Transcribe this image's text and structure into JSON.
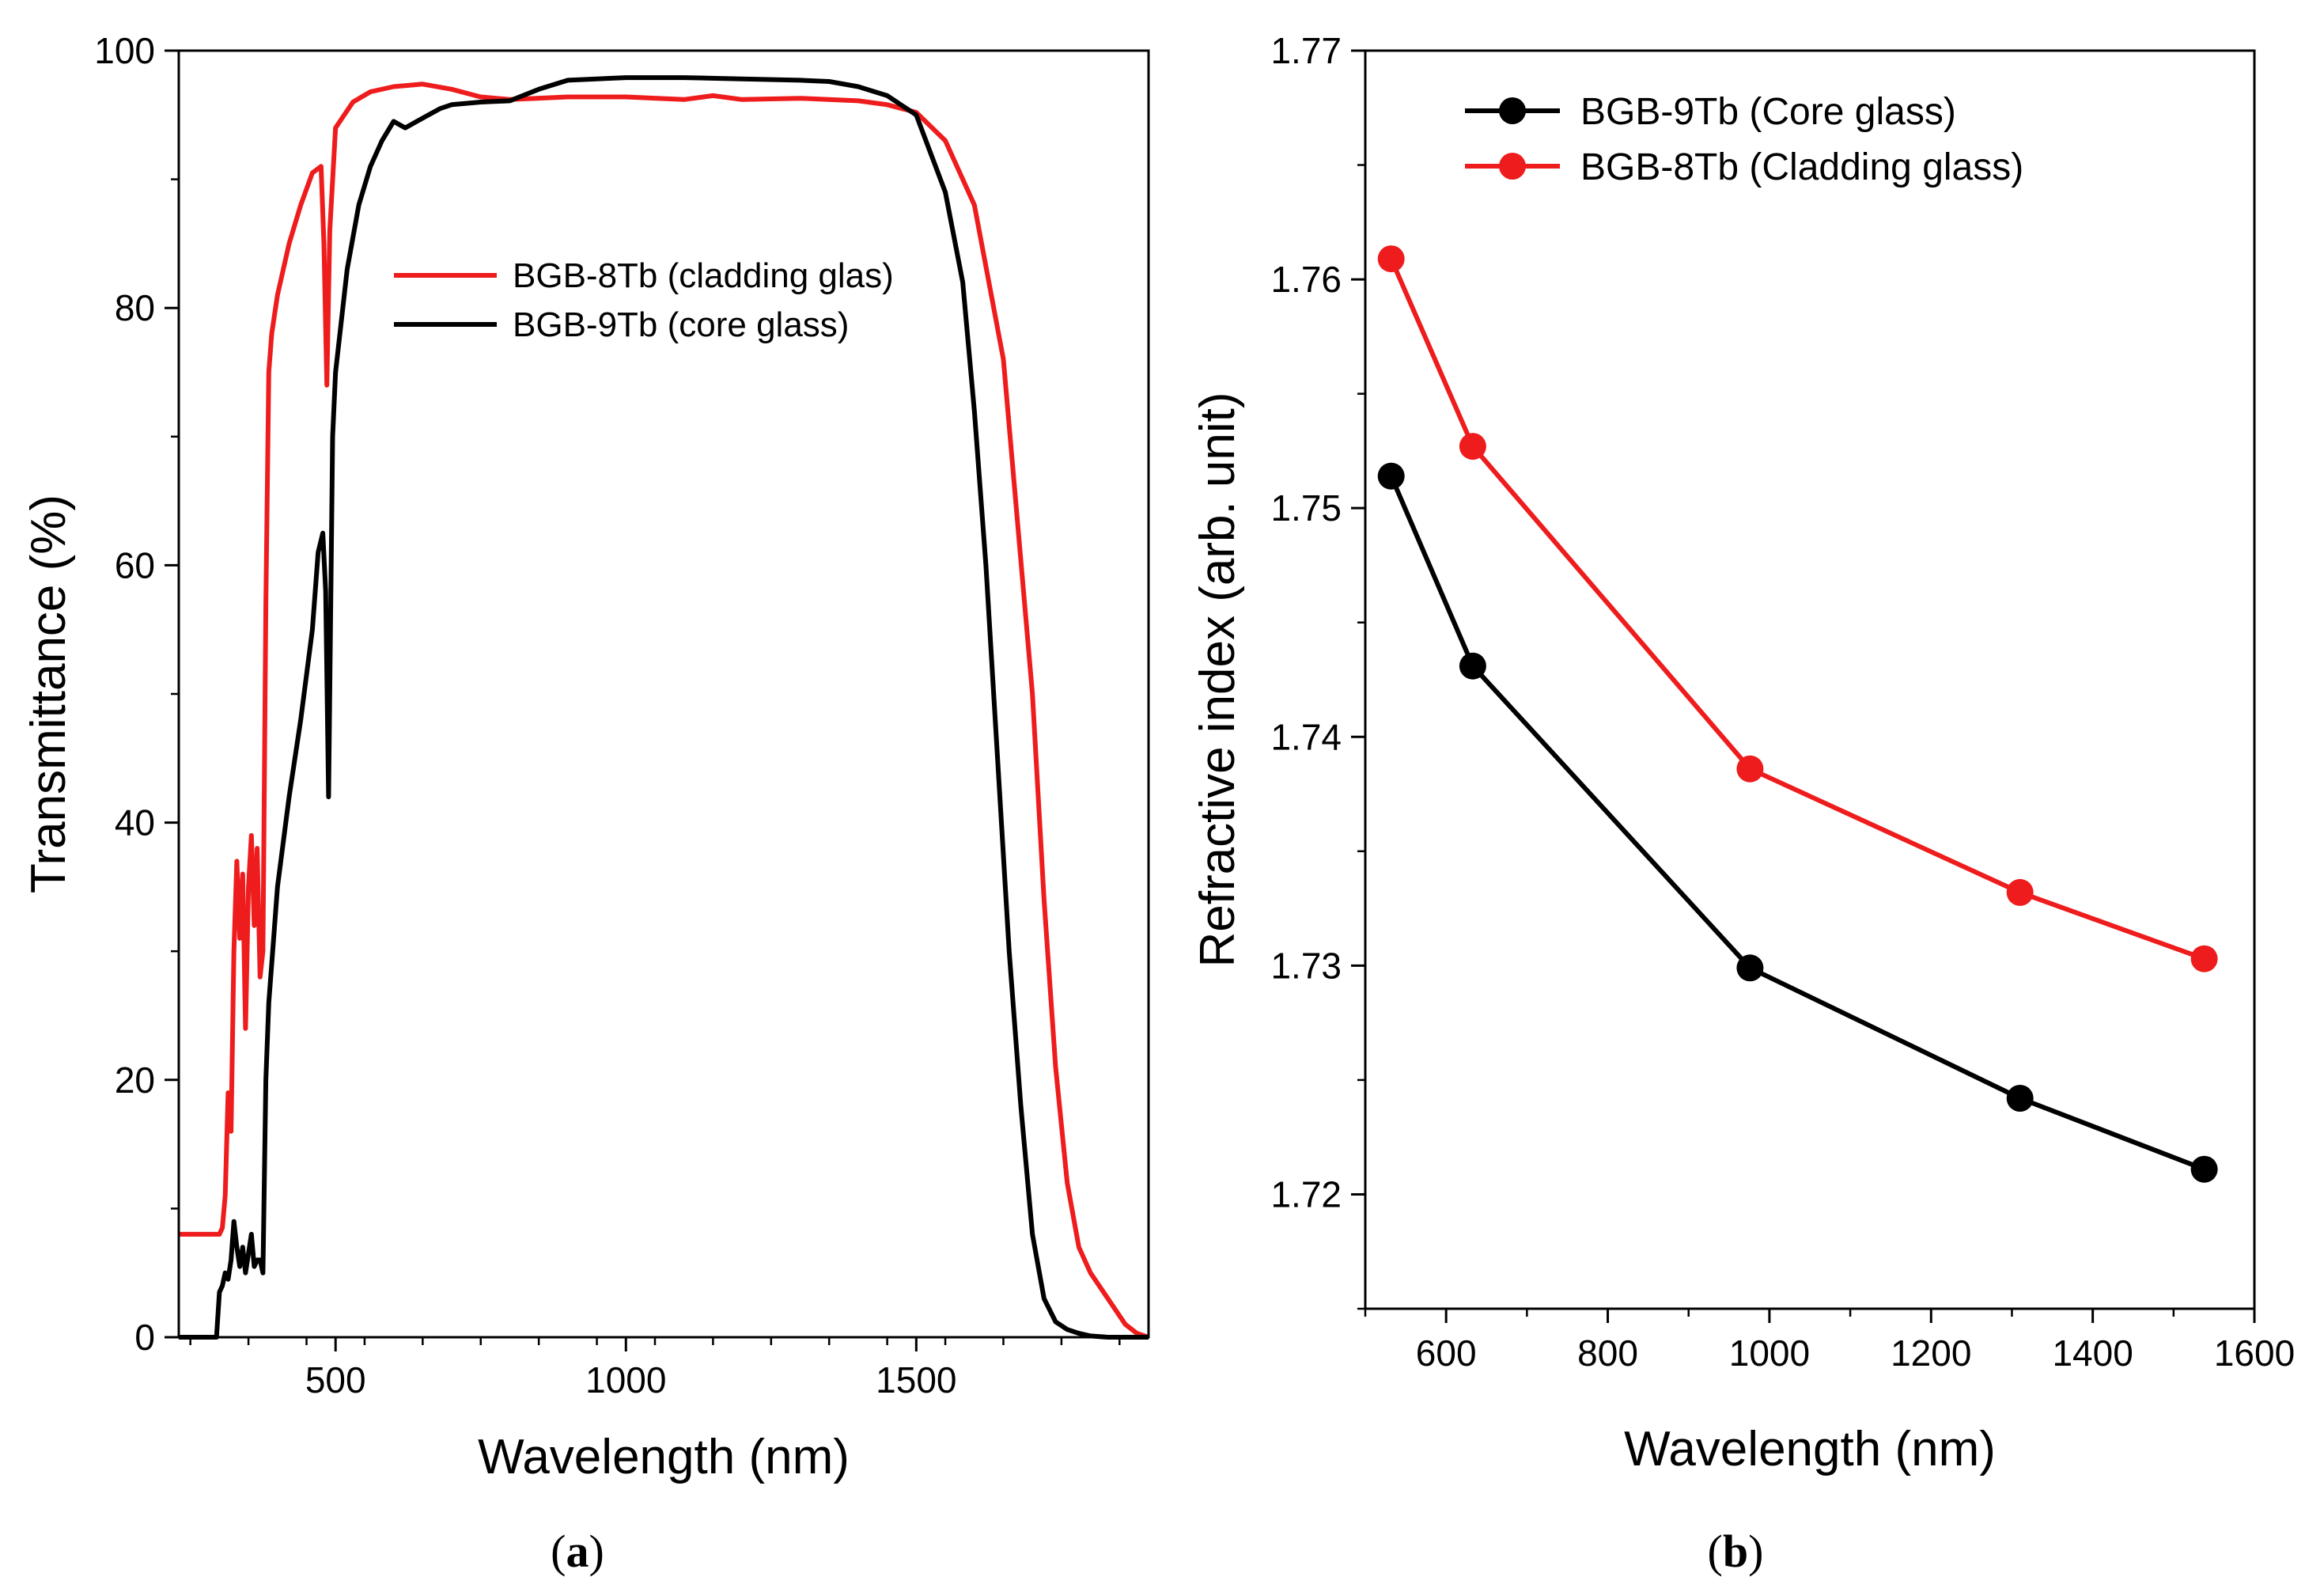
{
  "chart_data": [
    {
      "type": "line",
      "panel_label": {
        "open": "(",
        "letter": "a",
        "close": ")"
      },
      "title": "",
      "xlabel": "Wavelength (nm)",
      "ylabel": "Transmittance (%)",
      "xlim": [
        230,
        1900
      ],
      "ylim": [
        0,
        100
      ],
      "xticks": [
        500,
        1000,
        1500
      ],
      "yticks": [
        0,
        20,
        40,
        60,
        80,
        100
      ],
      "legend_position": "upper-center",
      "series": [
        {
          "name": "BGB-8Tb (cladding glas)",
          "color": "#ee1c1c",
          "x": [
            230,
            300,
            305,
            310,
            315,
            320,
            325,
            330,
            335,
            340,
            345,
            350,
            355,
            360,
            365,
            370,
            375,
            380,
            385,
            390,
            400,
            420,
            440,
            460,
            475,
            480,
            485,
            490,
            500,
            530,
            560,
            600,
            650,
            700,
            750,
            800,
            900,
            1000,
            1100,
            1150,
            1200,
            1300,
            1400,
            1450,
            1500,
            1550,
            1600,
            1650,
            1700,
            1720,
            1740,
            1760,
            1780,
            1800,
            1830,
            1860,
            1880,
            1900
          ],
          "y": [
            8,
            8,
            8.5,
            11,
            19,
            16,
            30,
            37,
            31,
            36,
            24,
            35,
            39,
            32,
            38,
            28,
            30,
            57,
            75,
            78,
            81,
            85,
            88,
            90.5,
            91,
            85,
            74,
            86,
            94,
            96,
            96.8,
            97.2,
            97.4,
            97,
            96.4,
            96.2,
            96.4,
            96.4,
            96.2,
            96.5,
            96.2,
            96.3,
            96.1,
            95.8,
            95.2,
            93,
            88,
            76,
            50,
            34,
            21,
            12,
            7,
            5,
            3,
            1,
            0.3,
            0
          ]
        },
        {
          "name": "BGB-9Tb (core glass)",
          "color": "#000000",
          "x": [
            230,
            295,
            300,
            305,
            310,
            315,
            320,
            325,
            330,
            335,
            340,
            345,
            350,
            355,
            360,
            365,
            370,
            375,
            380,
            385,
            390,
            400,
            420,
            440,
            460,
            470,
            478,
            483,
            488,
            495,
            500,
            520,
            540,
            560,
            580,
            600,
            620,
            640,
            660,
            680,
            700,
            750,
            800,
            850,
            900,
            1000,
            1100,
            1200,
            1300,
            1350,
            1400,
            1450,
            1500,
            1550,
            1580,
            1600,
            1620,
            1640,
            1660,
            1680,
            1700,
            1720,
            1740,
            1760,
            1780,
            1800,
            1830,
            1860,
            1900
          ],
          "y": [
            0,
            0,
            3.5,
            4,
            5,
            4.5,
            6,
            9,
            7,
            5.5,
            7,
            5,
            6.5,
            8,
            5.5,
            6,
            6,
            5,
            20,
            26,
            29,
            35,
            42,
            48,
            55,
            61,
            62.5,
            58,
            42,
            70,
            75,
            83,
            88,
            91,
            93,
            94.5,
            94,
            94.5,
            95,
            95.5,
            95.8,
            96,
            96.1,
            97,
            97.7,
            97.9,
            97.9,
            97.8,
            97.7,
            97.6,
            97.2,
            96.5,
            95,
            89,
            82,
            72,
            60,
            45,
            30,
            18,
            8,
            3,
            1.2,
            0.6,
            0.3,
            0.1,
            0,
            0,
            0
          ]
        }
      ]
    },
    {
      "type": "line",
      "panel_label": {
        "open": "(",
        "letter": "b",
        "close": ")"
      },
      "title": "",
      "xlabel": "Wavelength (nm)",
      "ylabel": "Refractive index (arb. unit)",
      "xlim": [
        500,
        1600
      ],
      "ylim": [
        1.715,
        1.77
      ],
      "xticks": [
        600,
        800,
        1000,
        1200,
        1400,
        1600
      ],
      "yticks": [
        1.72,
        1.73,
        1.74,
        1.75,
        1.76,
        1.77
      ],
      "ytick_labels": [
        "1.72",
        "1.73",
        "1.74",
        "1.75",
        "1.76",
        "1.77"
      ],
      "legend_position": "top-left",
      "series": [
        {
          "name": "BGB-9Tb (Core glass)",
          "color": "#000000",
          "x": [
            532,
            633,
            976,
            1310,
            1538
          ],
          "y": [
            1.7514,
            1.7431,
            1.7299,
            1.7242,
            1.7211
          ]
        },
        {
          "name": "BGB-8Tb (Cladding glass)",
          "color": "#ee1c1c",
          "x": [
            532,
            633,
            976,
            1310,
            1538
          ],
          "y": [
            1.7609,
            1.7527,
            1.7386,
            1.7332,
            1.7303
          ]
        }
      ]
    }
  ]
}
